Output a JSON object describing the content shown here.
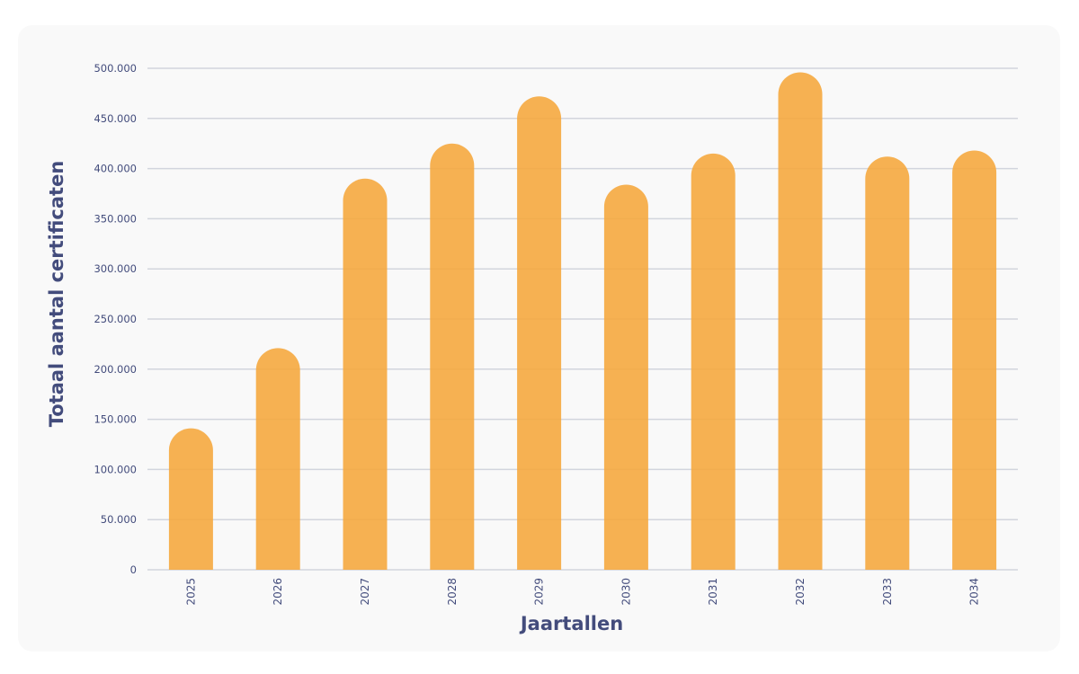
{
  "chart_data": {
    "type": "bar",
    "title": "",
    "xlabel": "Jaartallen",
    "ylabel": "Totaal aantal certificaten",
    "categories": [
      "2025",
      "2026",
      "2027",
      "2028",
      "2029",
      "2030",
      "2031",
      "2032",
      "2033",
      "2034"
    ],
    "values": [
      141000,
      221000,
      390000,
      425000,
      472000,
      384000,
      415000,
      496000,
      412000,
      418000
    ],
    "ylim": [
      0,
      500000
    ],
    "yticks": [
      0,
      50000,
      100000,
      150000,
      200000,
      250000,
      300000,
      350000,
      400000,
      450000,
      500000
    ],
    "ytick_labels": [
      "0",
      "50.000",
      "100.000",
      "150.000",
      "200.000",
      "250.000",
      "300.000",
      "350.000",
      "400.000",
      "450.000",
      "500.000"
    ],
    "grid": true,
    "legend": null,
    "bar_color": "#F5AF4F",
    "text_color": "#434C7C",
    "gridline_color": "#D2D5DD",
    "background_color": "#F9F9F9"
  }
}
